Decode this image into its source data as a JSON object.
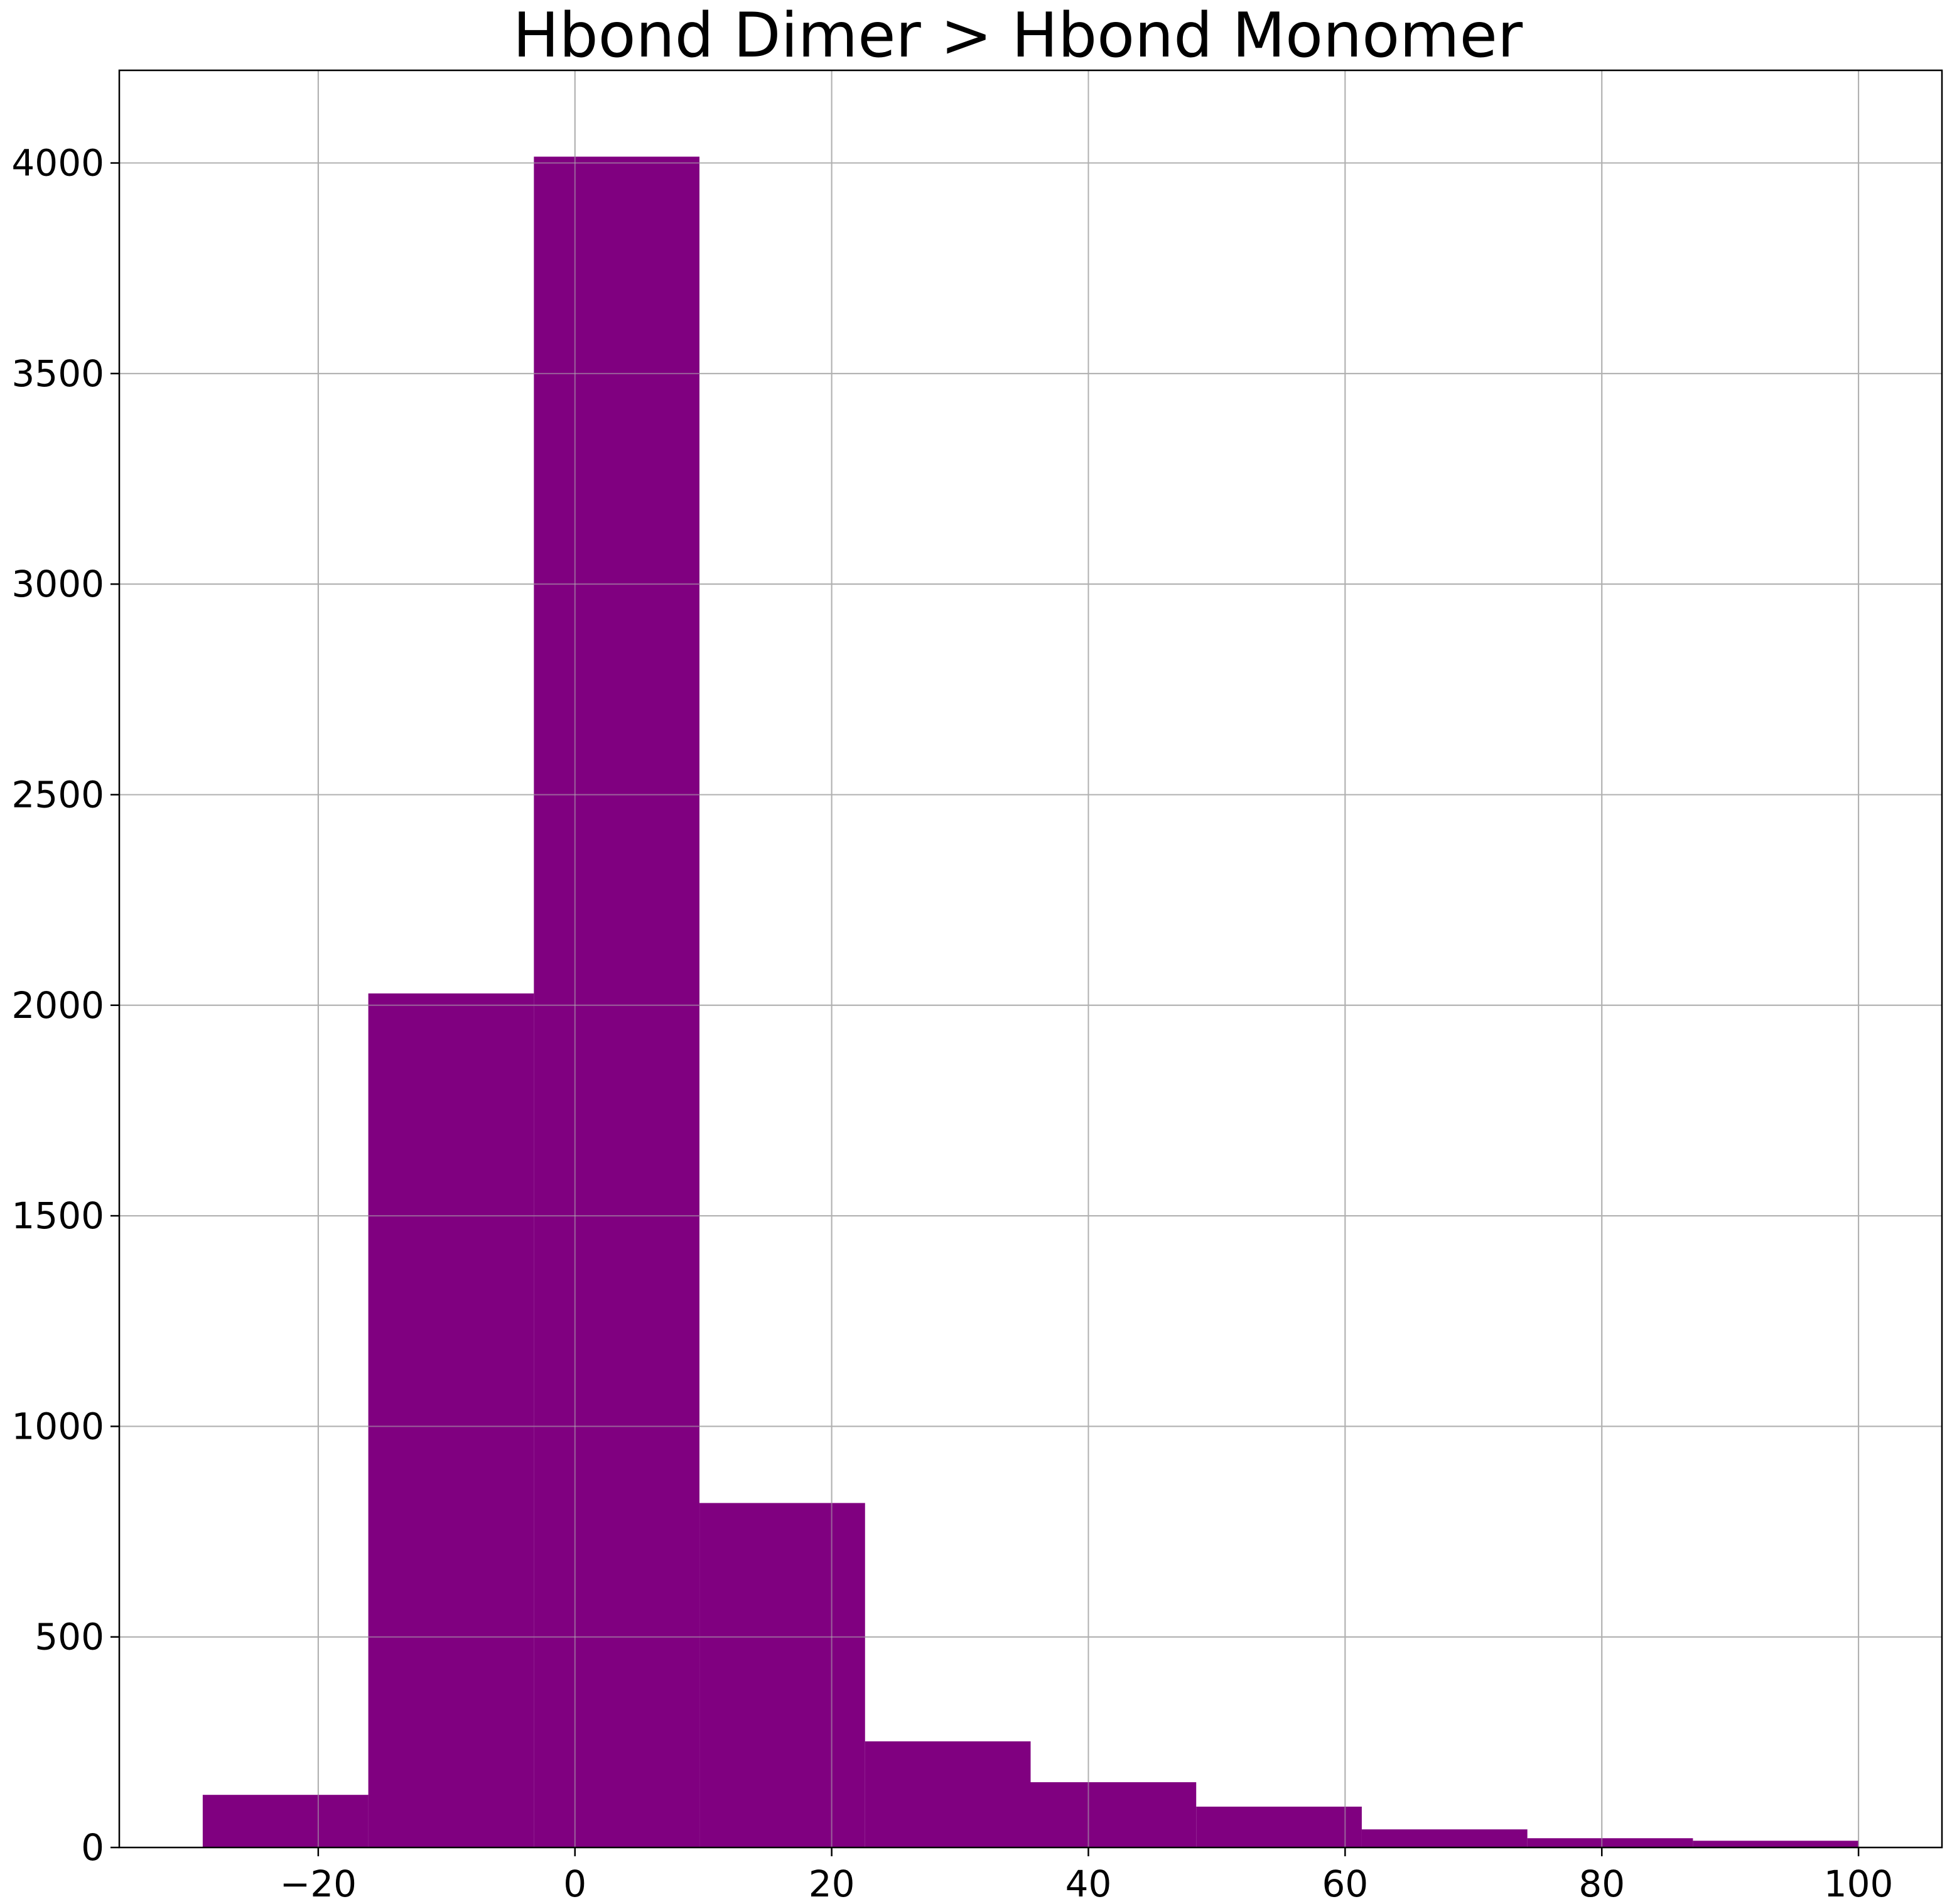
{
  "chart_data": {
    "type": "bar",
    "title": "Hbond Dimer > Hbond Monomer",
    "xlabel": "",
    "ylabel": "",
    "xlim": [
      -35.5,
      106.5
    ],
    "ylim": [
      0,
      4220
    ],
    "bin_edges": [
      -29,
      -16.1,
      -3.2,
      9.7,
      22.6,
      35.5,
      48.4,
      61.3,
      74.2,
      87.1,
      100
    ],
    "values": [
      125,
      2028,
      4015,
      818,
      252,
      155,
      97,
      43,
      22,
      16
    ],
    "xticks": [
      -20,
      0,
      20,
      40,
      60,
      80,
      100
    ],
    "xtick_labels": [
      "−20",
      "0",
      "20",
      "40",
      "60",
      "80",
      "100"
    ],
    "yticks": [
      0,
      500,
      1000,
      1500,
      2000,
      2500,
      3000,
      3500,
      4000
    ],
    "ytick_labels": [
      "0",
      "500",
      "1000",
      "1500",
      "2000",
      "2500",
      "3000",
      "3500",
      "4000"
    ],
    "grid": true,
    "legend": "none",
    "colors": {
      "bar": "#800080",
      "grid": "#b0b0b0",
      "axis": "#000000"
    }
  }
}
